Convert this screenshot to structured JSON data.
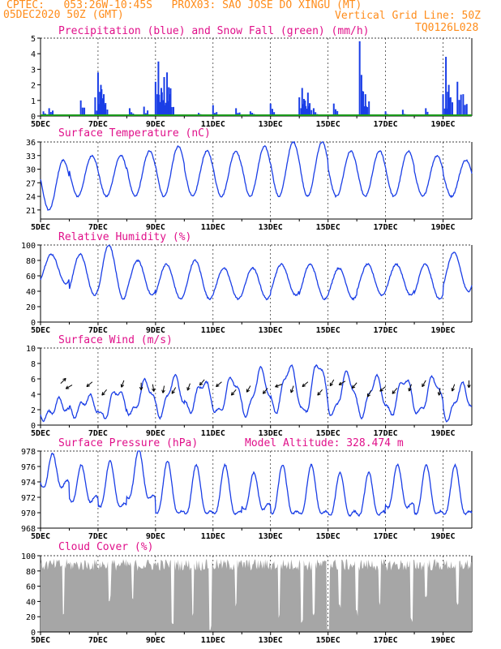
{
  "header": {
    "line1": "CPTEC:   053:26W-10:45S   PROX03: SAO JOSE DO XINGU (MT)",
    "line2_left": "05DEC2020 50Z (GMT)",
    "line2_right": "Vertical Grid Line: 50Z",
    "line3_right": "TQ0126L028"
  },
  "colors": {
    "header": "#ff8c1a",
    "title": "#e0108a",
    "line": "#1a3ee6",
    "precip": "#1a3ee6",
    "snow": "#1a9a1a",
    "cloud": "#a6a6a6"
  },
  "x_axis": {
    "day_start": 5,
    "day_end": 20,
    "tick_labels": [
      "5DEC",
      "7DEC",
      "9DEC",
      "11DEC",
      "13DEC",
      "15DEC",
      "17DEC",
      "19DEC"
    ]
  },
  "chart_data": [
    {
      "id": "precip",
      "type": "bar",
      "title": "Precipitation (blue) and Snow Fall (green) (mm/h)",
      "ylim": [
        0,
        5
      ],
      "yticks": [
        0,
        1,
        2,
        3,
        4,
        5
      ],
      "snow_values": "all zero",
      "events": [
        {
          "day": 5.1,
          "mm": 0.3
        },
        {
          "day": 5.3,
          "mm": 0.5
        },
        {
          "day": 6.4,
          "mm": 1.0
        },
        {
          "day": 6.9,
          "mm": 1.2
        },
        {
          "day": 7.0,
          "mm": 2.8
        },
        {
          "day": 7.1,
          "mm": 2.0
        },
        {
          "day": 7.2,
          "mm": 1.4
        },
        {
          "day": 8.1,
          "mm": 0.5
        },
        {
          "day": 8.6,
          "mm": 0.6
        },
        {
          "day": 9.0,
          "mm": 2.2
        },
        {
          "day": 9.1,
          "mm": 3.5
        },
        {
          "day": 9.2,
          "mm": 1.8
        },
        {
          "day": 9.3,
          "mm": 2.5
        },
        {
          "day": 9.4,
          "mm": 2.8
        },
        {
          "day": 9.5,
          "mm": 1.4
        },
        {
          "day": 10.5,
          "mm": 0.2
        },
        {
          "day": 11.0,
          "mm": 0.7
        },
        {
          "day": 11.8,
          "mm": 0.5
        },
        {
          "day": 12.3,
          "mm": 0.3
        },
        {
          "day": 13.0,
          "mm": 0.8
        },
        {
          "day": 14.0,
          "mm": 1.2
        },
        {
          "day": 14.1,
          "mm": 1.8
        },
        {
          "day": 14.2,
          "mm": 1.0
        },
        {
          "day": 14.3,
          "mm": 1.5
        },
        {
          "day": 14.5,
          "mm": 0.5
        },
        {
          "day": 15.2,
          "mm": 0.8
        },
        {
          "day": 16.1,
          "mm": 4.8
        },
        {
          "day": 16.2,
          "mm": 1.6
        },
        {
          "day": 16.3,
          "mm": 1.4
        },
        {
          "day": 17.0,
          "mm": 0.3
        },
        {
          "day": 17.6,
          "mm": 0.4
        },
        {
          "day": 18.4,
          "mm": 0.5
        },
        {
          "day": 19.0,
          "mm": 1.4
        },
        {
          "day": 19.1,
          "mm": 3.8
        },
        {
          "day": 19.2,
          "mm": 2.0
        },
        {
          "day": 19.5,
          "mm": 2.2
        },
        {
          "day": 19.7,
          "mm": 1.4
        }
      ]
    },
    {
      "id": "temp",
      "type": "line",
      "title": "Surface Temperature (nC)",
      "ylim": [
        19,
        36
      ],
      "yticks": [
        21,
        24,
        27,
        30,
        33,
        36
      ],
      "daily_min": [
        21,
        24,
        24,
        24,
        24,
        24,
        24,
        24,
        24,
        24,
        24,
        24,
        24,
        24,
        24
      ],
      "daily_max": [
        32,
        33,
        33,
        34,
        35,
        34,
        34,
        35,
        36,
        36,
        34,
        34,
        34,
        33,
        32
      ]
    },
    {
      "id": "rh",
      "type": "line",
      "title": "Relative Humidity (%)",
      "ylim": [
        0,
        100
      ],
      "yticks": [
        0,
        20,
        40,
        60,
        80,
        100
      ],
      "daily_min": [
        50,
        35,
        30,
        35,
        30,
        30,
        30,
        30,
        35,
        30,
        30,
        35,
        35,
        30,
        40
      ],
      "daily_max": [
        88,
        88,
        100,
        80,
        75,
        80,
        70,
        70,
        75,
        75,
        70,
        75,
        75,
        75,
        90
      ]
    },
    {
      "id": "wind",
      "type": "line",
      "title": "Surface Wind (m/s)",
      "ylim": [
        0,
        10
      ],
      "yticks": [
        0,
        2,
        4,
        6,
        8,
        10
      ],
      "daily_min": [
        1,
        1.5,
        1,
        1.5,
        1.5,
        2,
        1.5,
        1.5,
        2,
        1.5,
        1.5,
        1.5,
        1.5,
        1.5,
        1
      ],
      "daily_max": [
        3,
        3.5,
        4.5,
        5.5,
        6,
        5.5,
        6,
        7,
        7.5,
        8,
        6.5,
        6,
        6,
        6,
        5
      ],
      "arrows": [
        {
          "day": 5.7,
          "dir_deg": 45
        },
        {
          "day": 6.1,
          "dir_deg": 210
        },
        {
          "day": 6.8,
          "dir_deg": 220
        },
        {
          "day": 7.3,
          "dir_deg": 230
        },
        {
          "day": 7.9,
          "dir_deg": 250
        },
        {
          "day": 8.5,
          "dir_deg": 270
        },
        {
          "day": 8.9,
          "dir_deg": 280
        },
        {
          "day": 9.3,
          "dir_deg": 260
        },
        {
          "day": 9.7,
          "dir_deg": 240
        },
        {
          "day": 10.2,
          "dir_deg": 250
        },
        {
          "day": 10.7,
          "dir_deg": 230
        },
        {
          "day": 11.3,
          "dir_deg": 220
        },
        {
          "day": 11.8,
          "dir_deg": 230
        },
        {
          "day": 12.3,
          "dir_deg": 240
        },
        {
          "day": 12.9,
          "dir_deg": 230
        },
        {
          "day": 13.4,
          "dir_deg": 200
        },
        {
          "day": 13.8,
          "dir_deg": 250
        },
        {
          "day": 14.3,
          "dir_deg": 220
        },
        {
          "day": 14.8,
          "dir_deg": 230
        },
        {
          "day": 15.2,
          "dir_deg": 240
        },
        {
          "day": 15.6,
          "dir_deg": 210
        },
        {
          "day": 16.0,
          "dir_deg": 230
        },
        {
          "day": 16.5,
          "dir_deg": 240
        },
        {
          "day": 17.0,
          "dir_deg": 220
        },
        {
          "day": 17.4,
          "dir_deg": 230
        },
        {
          "day": 17.9,
          "dir_deg": 250
        },
        {
          "day": 18.4,
          "dir_deg": 240
        },
        {
          "day": 18.9,
          "dir_deg": 260
        },
        {
          "day": 19.4,
          "dir_deg": 250
        },
        {
          "day": 19.9,
          "dir_deg": 270
        }
      ]
    },
    {
      "id": "press",
      "type": "line",
      "title": "Surface Pressure (hPa)",
      "annotation": "Model Altitude: 328.474  m",
      "ylim": [
        968,
        978
      ],
      "yticks": [
        968,
        970,
        972,
        974,
        976,
        978
      ],
      "daily_min": [
        973,
        971,
        970,
        971,
        969,
        969,
        969,
        970,
        969,
        969,
        969,
        969,
        970,
        969,
        969
      ],
      "daily_max": [
        976.5,
        975,
        975.5,
        977,
        975.5,
        975,
        975,
        974,
        975,
        975,
        974,
        974,
        975,
        975,
        975
      ]
    },
    {
      "id": "cloud",
      "type": "area",
      "title": "Cloud Cover (%)",
      "ylim": [
        0,
        100
      ],
      "yticks": [
        0,
        20,
        40,
        60,
        80,
        100
      ],
      "typical": 88,
      "dips": [
        {
          "day": 5.8,
          "pct": 20
        },
        {
          "day": 7.4,
          "pct": 40
        },
        {
          "day": 8.2,
          "pct": 35
        },
        {
          "day": 9.6,
          "pct": 10
        },
        {
          "day": 10.3,
          "pct": 20
        },
        {
          "day": 10.9,
          "pct": 0
        },
        {
          "day": 11.8,
          "pct": 30
        },
        {
          "day": 13.3,
          "pct": 15
        },
        {
          "day": 14.1,
          "pct": 10
        },
        {
          "day": 14.5,
          "pct": 20
        },
        {
          "day": 15.0,
          "pct": 0
        },
        {
          "day": 15.4,
          "pct": 30
        },
        {
          "day": 16.0,
          "pct": 20
        },
        {
          "day": 16.8,
          "pct": 30
        },
        {
          "day": 17.9,
          "pct": 10
        },
        {
          "day": 18.4,
          "pct": 40
        },
        {
          "day": 19.5,
          "pct": 30
        }
      ]
    }
  ]
}
